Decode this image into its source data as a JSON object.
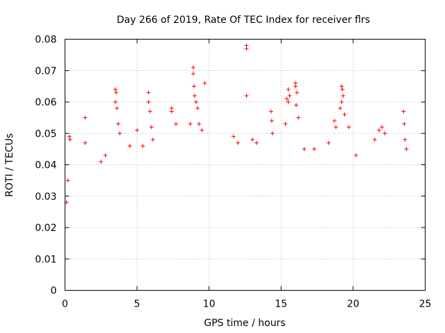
{
  "chart_data": {
    "type": "scatter",
    "title": "Day 266 of 2019, Rate Of TEC Index for receiver flrs",
    "xlabel": "GPS time / hours",
    "ylabel": "ROTI / TECUs",
    "xlim": [
      0,
      25
    ],
    "ylim": [
      0,
      0.08
    ],
    "x_ticks": [
      0,
      5,
      10,
      15,
      20,
      25
    ],
    "x_tick_labels": [
      "0",
      "5",
      "10",
      "15",
      "20",
      "25"
    ],
    "y_ticks": [
      0,
      0.01,
      0.02,
      0.03,
      0.04,
      0.05,
      0.06,
      0.07,
      0.08
    ],
    "y_tick_labels": [
      "0",
      "0.01",
      "0.02",
      "0.03",
      "0.04",
      "0.05",
      "0.06",
      "0.07",
      "0.08"
    ],
    "grid": true,
    "marker": "+",
    "color": "#ff0000",
    "series": [
      {
        "name": "flrs",
        "points": [
          [
            0.1,
            0.028
          ],
          [
            0.2,
            0.035
          ],
          [
            0.3,
            0.049
          ],
          [
            0.35,
            0.048
          ],
          [
            1.4,
            0.055
          ],
          [
            1.4,
            0.047
          ],
          [
            2.5,
            0.041
          ],
          [
            2.8,
            0.043
          ],
          [
            3.5,
            0.064
          ],
          [
            3.55,
            0.063
          ],
          [
            3.5,
            0.06
          ],
          [
            3.6,
            0.058
          ],
          [
            3.7,
            0.053
          ],
          [
            3.8,
            0.05
          ],
          [
            4.5,
            0.046
          ],
          [
            5.0,
            0.051
          ],
          [
            5.4,
            0.046
          ],
          [
            5.8,
            0.063
          ],
          [
            5.8,
            0.06
          ],
          [
            5.9,
            0.057
          ],
          [
            6.0,
            0.052
          ],
          [
            6.1,
            0.048
          ],
          [
            7.4,
            0.058
          ],
          [
            7.4,
            0.057
          ],
          [
            7.7,
            0.053
          ],
          [
            8.7,
            0.053
          ],
          [
            8.9,
            0.071
          ],
          [
            8.9,
            0.069
          ],
          [
            8.95,
            0.065
          ],
          [
            9.0,
            0.062
          ],
          [
            9.1,
            0.06
          ],
          [
            9.2,
            0.058
          ],
          [
            9.3,
            0.053
          ],
          [
            9.5,
            0.051
          ],
          [
            9.7,
            0.066
          ],
          [
            11.7,
            0.049
          ],
          [
            12.0,
            0.047
          ],
          [
            12.6,
            0.078
          ],
          [
            12.6,
            0.077
          ],
          [
            12.6,
            0.062
          ],
          [
            13.0,
            0.048
          ],
          [
            13.3,
            0.047
          ],
          [
            14.3,
            0.057
          ],
          [
            14.35,
            0.054
          ],
          [
            14.4,
            0.05
          ],
          [
            15.3,
            0.053
          ],
          [
            15.4,
            0.061
          ],
          [
            15.5,
            0.064
          ],
          [
            15.6,
            0.062
          ],
          [
            15.5,
            0.06
          ],
          [
            16.0,
            0.066
          ],
          [
            16.0,
            0.065
          ],
          [
            16.1,
            0.063
          ],
          [
            16.05,
            0.059
          ],
          [
            16.2,
            0.055
          ],
          [
            16.6,
            0.045
          ],
          [
            17.3,
            0.045
          ],
          [
            18.3,
            0.047
          ],
          [
            18.7,
            0.054
          ],
          [
            18.8,
            0.052
          ],
          [
            19.2,
            0.065
          ],
          [
            19.25,
            0.064
          ],
          [
            19.3,
            0.062
          ],
          [
            19.2,
            0.06
          ],
          [
            19.1,
            0.058
          ],
          [
            19.4,
            0.056
          ],
          [
            19.7,
            0.052
          ],
          [
            20.2,
            0.043
          ],
          [
            21.5,
            0.048
          ],
          [
            21.8,
            0.051
          ],
          [
            22.0,
            0.052
          ],
          [
            22.2,
            0.05
          ],
          [
            23.5,
            0.057
          ],
          [
            23.55,
            0.053
          ],
          [
            23.6,
            0.048
          ],
          [
            23.7,
            0.045
          ]
        ]
      }
    ]
  }
}
